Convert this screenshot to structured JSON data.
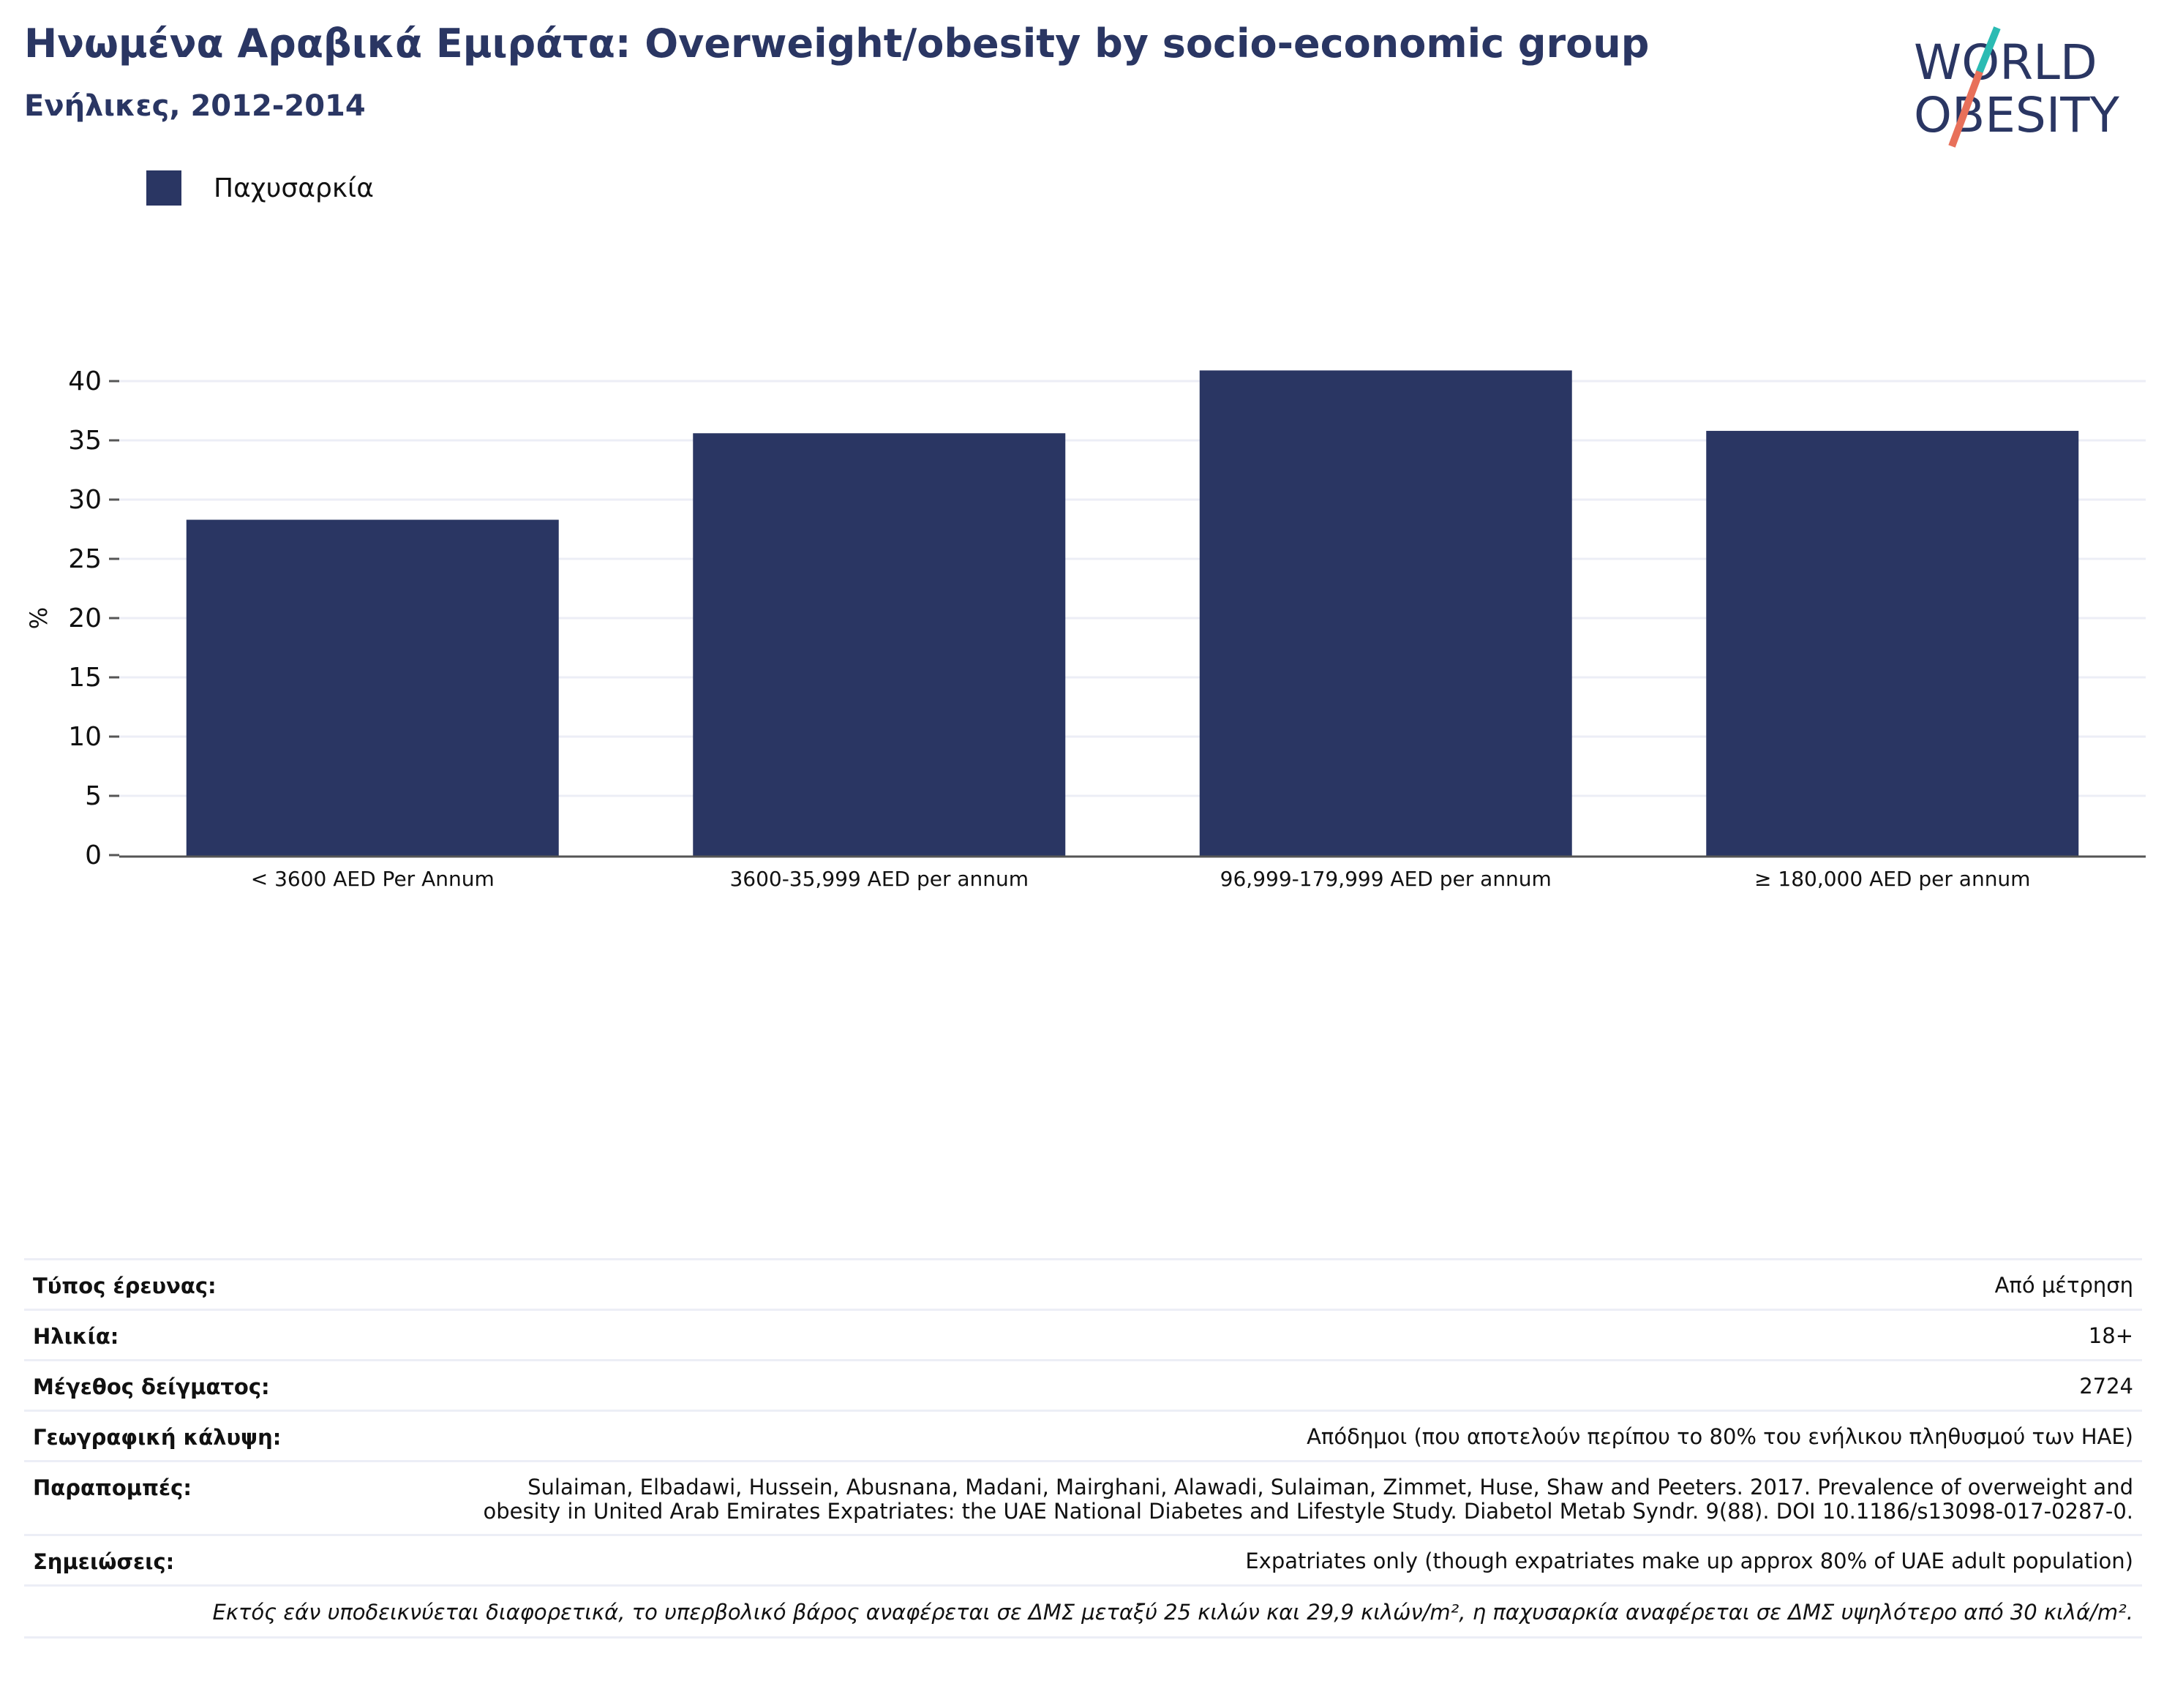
{
  "header": {
    "title": "Ηνωμένα Αραβικά Εμιράτα: Overweight/obesity by socio-economic group",
    "subtitle": "Ενήλικες, 2012-2014"
  },
  "logo": {
    "line1": "WORLD",
    "line2": "OBESITY",
    "slash_top_color": "#2bbbb3",
    "slash_bottom_color": "#e8705a"
  },
  "colors": {
    "bar": "#2a3663",
    "grid": "#eceef6",
    "axis": "#555555",
    "text": "#2a3663"
  },
  "chart_data": {
    "type": "bar",
    "categories": [
      "< 3600 AED Per Annum",
      "3600-35,999 AED per annum",
      "96,999-179,999 AED per annum",
      "≥ 180,000 AED per annum"
    ],
    "series": [
      {
        "name": "Παχυσαρκία",
        "values": [
          28.3,
          35.6,
          40.9,
          35.8
        ]
      }
    ],
    "ylabel": "%",
    "xlabel": "",
    "ylim": [
      0,
      43
    ],
    "yticks": [
      0,
      5,
      10,
      15,
      20,
      25,
      30,
      35,
      40
    ],
    "grid": true,
    "legend_position": "top-left"
  },
  "info": {
    "rows": [
      {
        "key": "Τύπος έρευνας:",
        "value": "Από μέτρηση"
      },
      {
        "key": "Ηλικία:",
        "value": "18+"
      },
      {
        "key": "Μέγεθος δείγματος:",
        "value": "2724"
      },
      {
        "key": "Γεωγραφική κάλυψη:",
        "value": "Απόδημοι (που αποτελούν περίπου το 80% του ενήλικου πληθυσμού των ΗΑΕ)"
      },
      {
        "key": "Παραπομπές:",
        "value": "Sulaiman, Elbadawi, Hussein, Abusnana, Madani, Mairghani, Alawadi, Sulaiman, Zimmet, Huse, Shaw and Peeters. 2017. Prevalence of overweight and obesity in United Arab Emirates Expatriates: the UAE National Diabetes and Lifestyle Study. Diabetol Metab Syndr. 9(88). DOI 10.1186/s13098-017-0287-0."
      },
      {
        "key": "Σημειώσεις:",
        "value": "Expatriates only (though expatriates make up approx 80% of UAE adult population)"
      }
    ],
    "footnote": "Εκτός εάν υποδεικνύεται διαφορετικά, το υπερβολικό βάρος αναφέρεται σε ΔΜΣ μεταξύ 25 κιλών και 29,9 κιλών/m², η παχυσαρκία αναφέρεται σε ΔΜΣ υψηλότερο από 30 κιλά/m²."
  }
}
